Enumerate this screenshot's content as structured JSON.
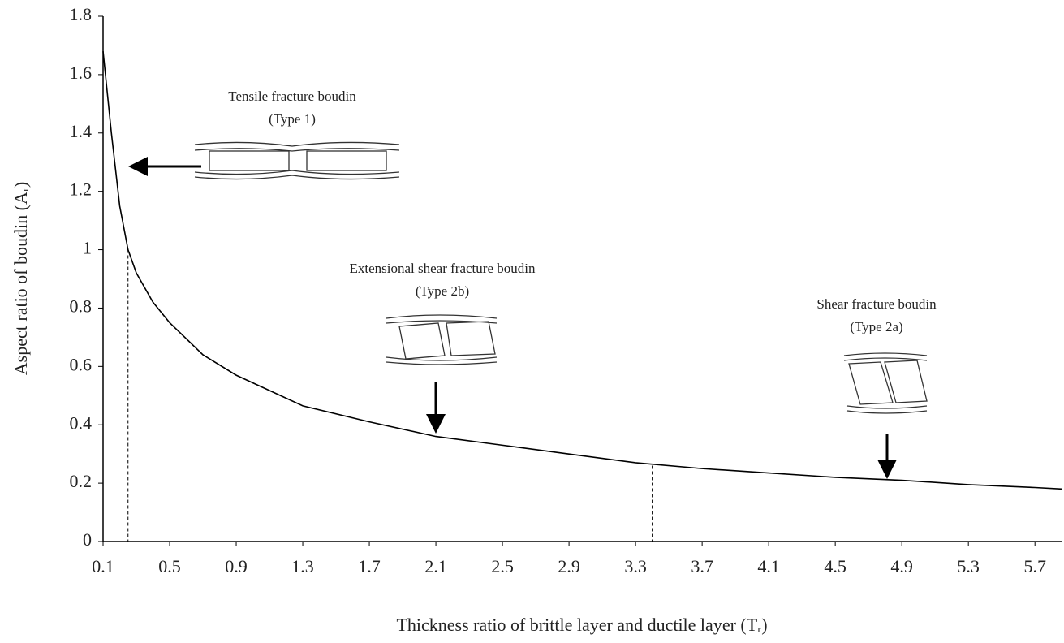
{
  "chart_data": {
    "type": "line",
    "xlabel": "Thickness ratio of brittle layer and ductile layer (Tᵣ)",
    "ylabel": "Aspect ratio of boudin (Aᵣ)",
    "x": [
      0.1,
      0.15,
      0.2,
      0.25,
      0.3,
      0.4,
      0.5,
      0.7,
      0.9,
      1.3,
      1.7,
      2.1,
      2.5,
      2.9,
      3.3,
      3.7,
      4.1,
      4.5,
      4.9,
      5.3,
      5.7,
      5.86
    ],
    "series": [
      {
        "color": "#000000",
        "values": [
          1.68,
          1.4,
          1.15,
          1.0,
          0.92,
          0.82,
          0.75,
          0.64,
          0.57,
          0.465,
          0.41,
          0.36,
          0.33,
          0.3,
          0.27,
          0.25,
          0.235,
          0.22,
          0.21,
          0.195,
          0.185,
          0.18
        ]
      }
    ],
    "reference_lines": [
      {
        "x": 0.25,
        "y": 1.0
      },
      {
        "x": 3.4,
        "y": 0.26
      }
    ],
    "annotations": [
      {
        "title": "Tensile fracture boudin",
        "subtitle": "(Type 1)"
      },
      {
        "title": "Extensional shear fracture boudin",
        "subtitle": "(Type 2b)"
      },
      {
        "title": "Shear fracture boudin",
        "subtitle": "(Type 2a)"
      }
    ],
    "xlim": [
      0.1,
      5.86
    ],
    "ylim": [
      0,
      1.8
    ],
    "xticks": [
      0.1,
      0.5,
      0.9,
      1.3,
      1.7,
      2.1,
      2.5,
      2.9,
      3.3,
      3.7,
      4.1,
      4.5,
      4.9,
      5.3,
      5.7
    ],
    "yticks": [
      0,
      0.2,
      0.4,
      0.6,
      0.8,
      1,
      1.2,
      1.4,
      1.6,
      1.8
    ]
  }
}
